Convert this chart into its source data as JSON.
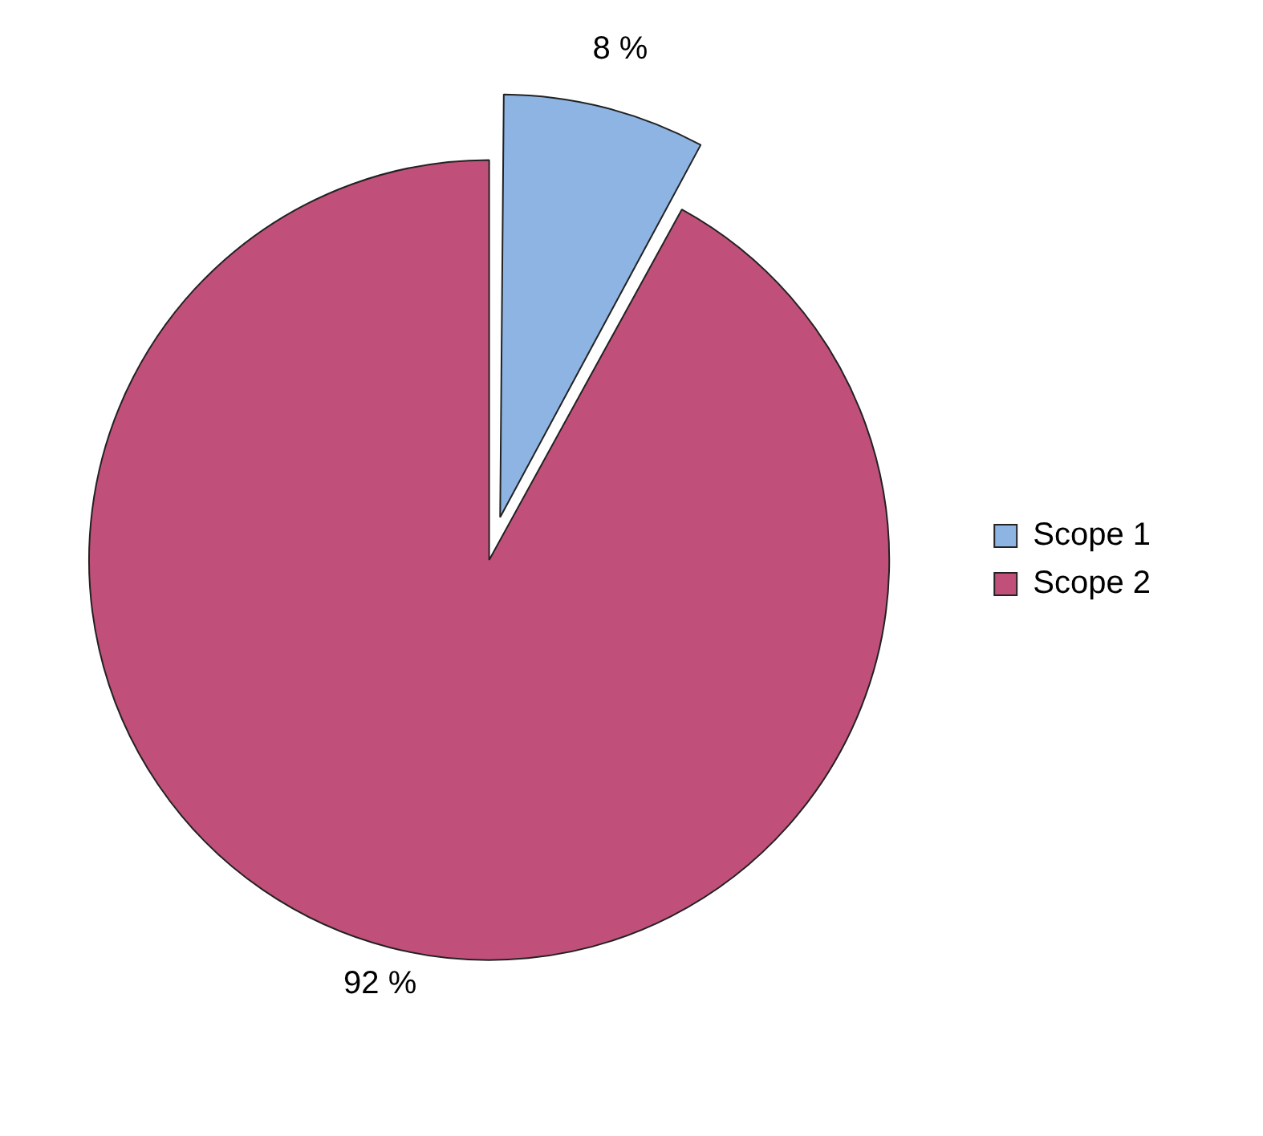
{
  "chart_data": {
    "type": "pie",
    "categories": [
      "Scope 1",
      "Scope 2"
    ],
    "values": [
      8,
      92
    ],
    "colors": [
      "#8db4e2",
      "#c0507a"
    ],
    "value_labels": [
      "8 %",
      "92 %"
    ],
    "legend": "right"
  }
}
